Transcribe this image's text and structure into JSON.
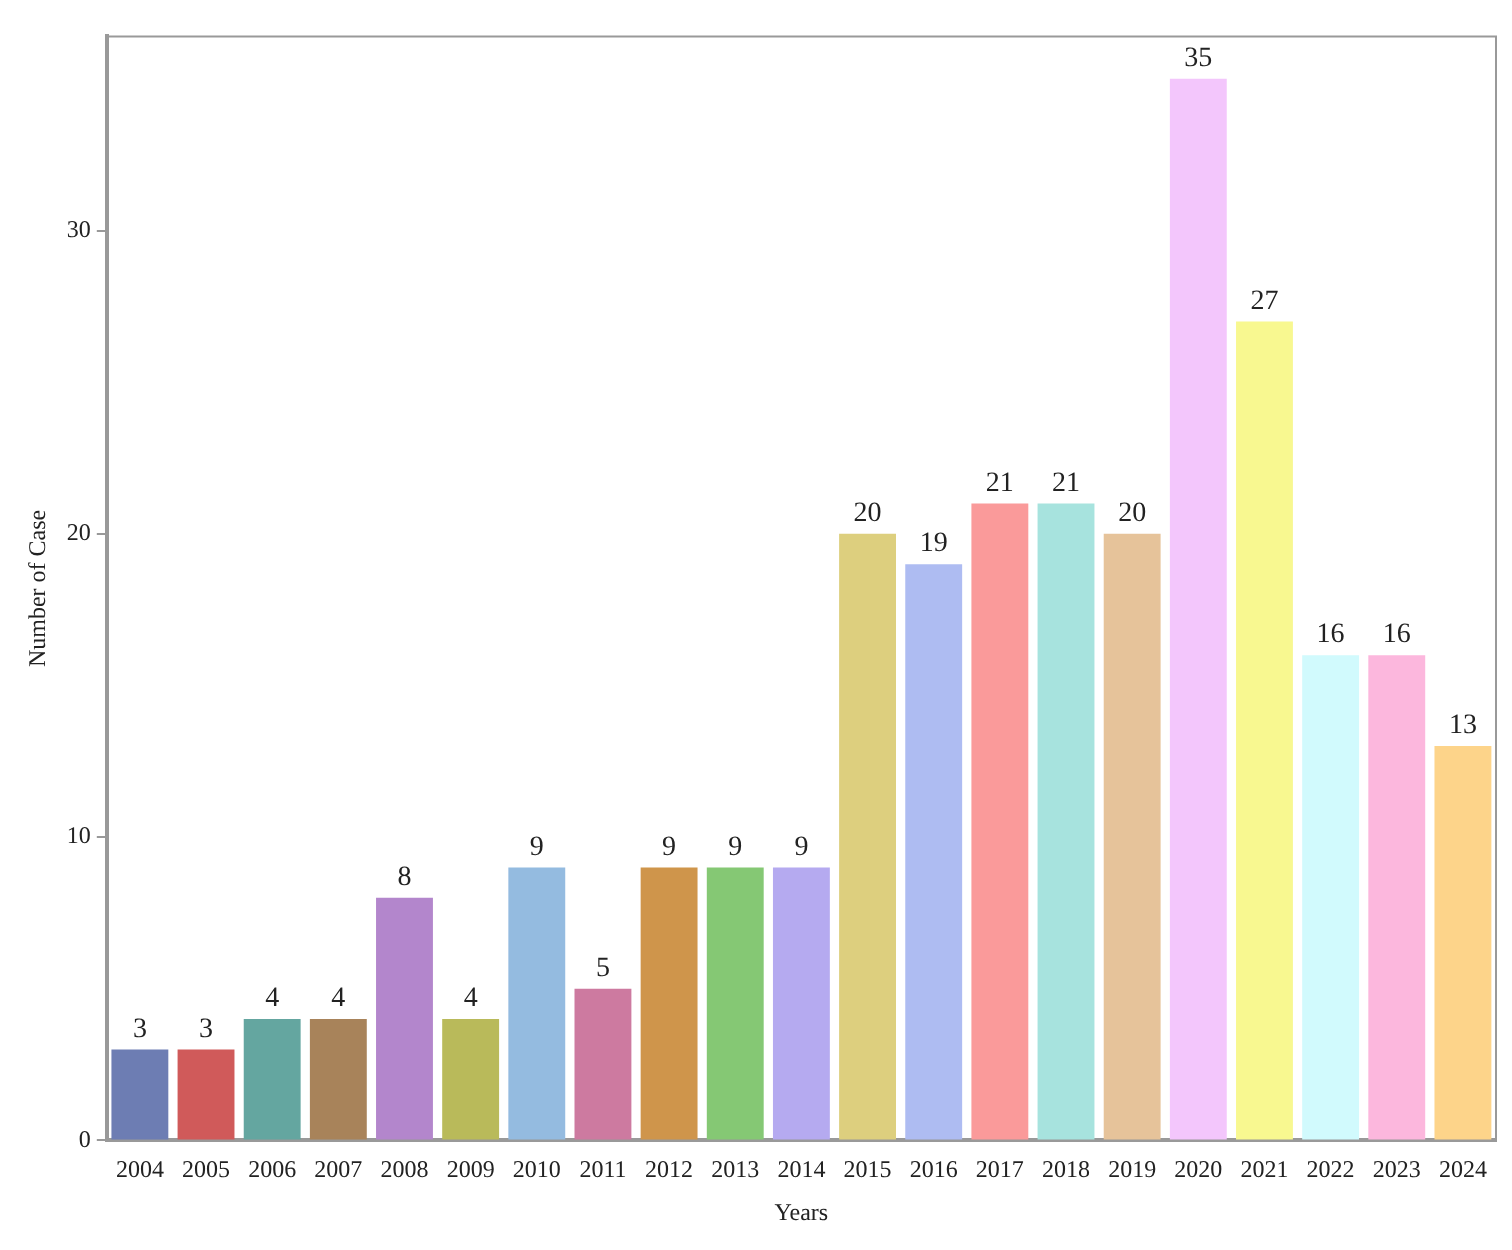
{
  "chart_data": {
    "type": "bar",
    "xlabel": "Years",
    "ylabel": "Number of Case",
    "categories": [
      "2004",
      "2005",
      "2006",
      "2007",
      "2008",
      "2009",
      "2010",
      "2011",
      "2012",
      "2013",
      "2014",
      "2015",
      "2016",
      "2017",
      "2018",
      "2019",
      "2020",
      "2021",
      "2022",
      "2023",
      "2024"
    ],
    "values": [
      3,
      3,
      4,
      4,
      8,
      4,
      9,
      5,
      9,
      9,
      9,
      20,
      19,
      21,
      21,
      20,
      35,
      27,
      16,
      16,
      13
    ],
    "colors": [
      "#6d7db3",
      "#d05a5a",
      "#64a6a0",
      "#a8835a",
      "#b386cc",
      "#b9ba5a",
      "#94bbe0",
      "#cd7aa0",
      "#cf954b",
      "#85c874",
      "#b5aaf0",
      "#ddcf7e",
      "#aebcf2",
      "#fa9a9a",
      "#a7e3de",
      "#e6c39a",
      "#f3c6fc",
      "#f8f890",
      "#d1fafd",
      "#fcb7dd",
      "#fdd48a"
    ],
    "data_labels": true,
    "ylim": [
      0,
      36.4
    ],
    "yticks": [
      0,
      10,
      20,
      30
    ],
    "grid": false,
    "legend": false
  }
}
